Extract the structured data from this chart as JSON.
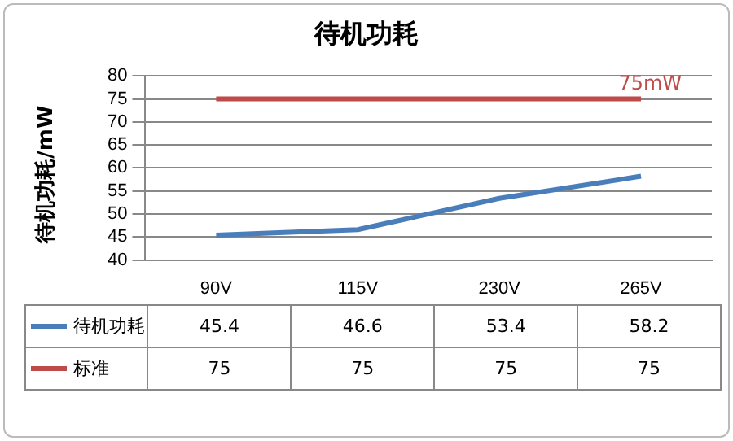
{
  "chart_data": {
    "type": "line",
    "title": "待机功耗",
    "ylabel": "待机功耗/mW",
    "categories": [
      "90V",
      "115V",
      "230V",
      "265V"
    ],
    "series": [
      {
        "name": "待机功耗",
        "color": "#4a7ebb",
        "values": [
          45.4,
          46.6,
          53.4,
          58.2
        ]
      },
      {
        "name": "标准",
        "color": "#be4b48",
        "values": [
          75,
          75,
          75,
          75
        ]
      }
    ],
    "ylim": [
      40,
      80
    ],
    "yticks": [
      40,
      45,
      50,
      55,
      60,
      65,
      70,
      75,
      80
    ],
    "grid": "y",
    "legend": "bottom",
    "data_labels": true,
    "marker": "none",
    "line_style": "solid",
    "annotations": [
      {
        "text": "75mW",
        "x": "265V",
        "y": 75
      }
    ]
  }
}
